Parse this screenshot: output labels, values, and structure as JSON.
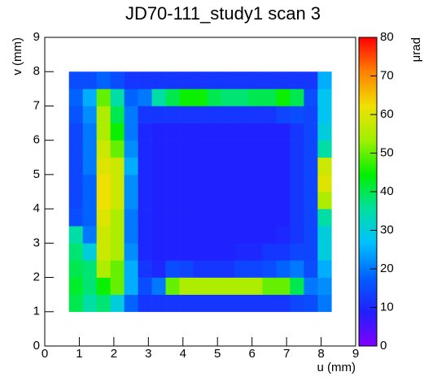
{
  "chart_data": {
    "type": "heatmap",
    "title": "JD70-111_study1 scan 3",
    "xlabel": "u (mm)",
    "ylabel": "v (mm)",
    "zlabel": "μrad",
    "xlim": [
      0,
      9
    ],
    "ylim": [
      0,
      9
    ],
    "zlim": [
      0,
      80
    ],
    "xticks": [
      0,
      1,
      2,
      3,
      4,
      5,
      6,
      7,
      8,
      9
    ],
    "yticks": [
      0,
      1,
      2,
      3,
      4,
      5,
      6,
      7,
      8,
      9
    ],
    "zticks": [
      0,
      10,
      20,
      30,
      40,
      50,
      60,
      70,
      80
    ],
    "colorscale": [
      "#8000ff",
      "#2020ff",
      "#0060ff",
      "#00c0ff",
      "#00e0a0",
      "#00f000",
      "#a0f000",
      "#f0e000",
      "#ff8000",
      "#ff0000"
    ],
    "x_edges": [
      0.7,
      1.1,
      1.5,
      1.9,
      2.3,
      2.7,
      3.1,
      3.5,
      3.9,
      4.3,
      4.7,
      5.1,
      5.5,
      5.9,
      6.3,
      6.7,
      7.1,
      7.5,
      7.9,
      8.3
    ],
    "y_edges": [
      1.0,
      1.5,
      2.0,
      2.5,
      3.0,
      3.5,
      4.0,
      4.5,
      5.0,
      5.5,
      6.0,
      6.5,
      7.0,
      7.5,
      8.0
    ],
    "z": [
      [
        40,
        35,
        38,
        30,
        18,
        12,
        12,
        12,
        12,
        12,
        12,
        12,
        12,
        12,
        12,
        12,
        14,
        15,
        20
      ],
      [
        42,
        38,
        45,
        50,
        25,
        15,
        20,
        50,
        55,
        55,
        55,
        55,
        55,
        55,
        50,
        50,
        40,
        20,
        22
      ],
      [
        40,
        38,
        55,
        50,
        25,
        12,
        10,
        15,
        14,
        12,
        12,
        12,
        14,
        14,
        15,
        18,
        20,
        15,
        25
      ],
      [
        38,
        30,
        58,
        55,
        22,
        10,
        9,
        9,
        9,
        9,
        9,
        9,
        10,
        10,
        12,
        12,
        14,
        14,
        30
      ],
      [
        35,
        20,
        58,
        55,
        20,
        10,
        9,
        9,
        9,
        9,
        9,
        9,
        9,
        9,
        9,
        10,
        12,
        14,
        30
      ],
      [
        15,
        18,
        60,
        55,
        20,
        10,
        9,
        9,
        9,
        9,
        9,
        9,
        9,
        9,
        9,
        9,
        12,
        14,
        35
      ],
      [
        14,
        18,
        62,
        58,
        22,
        10,
        9,
        9,
        9,
        9,
        9,
        9,
        9,
        9,
        9,
        9,
        12,
        14,
        55
      ],
      [
        14,
        18,
        62,
        58,
        22,
        10,
        9,
        9,
        9,
        9,
        9,
        9,
        9,
        9,
        9,
        9,
        12,
        14,
        60
      ],
      [
        14,
        20,
        60,
        58,
        25,
        10,
        9,
        9,
        9,
        9,
        9,
        9,
        9,
        9,
        9,
        9,
        12,
        14,
        58
      ],
      [
        14,
        20,
        58,
        50,
        22,
        10,
        9,
        9,
        9,
        9,
        9,
        9,
        9,
        9,
        9,
        9,
        12,
        14,
        35
      ],
      [
        14,
        20,
        55,
        45,
        20,
        10,
        9,
        9,
        9,
        9,
        9,
        9,
        9,
        9,
        9,
        9,
        12,
        14,
        30
      ],
      [
        16,
        22,
        55,
        40,
        20,
        12,
        12,
        12,
        12,
        12,
        12,
        12,
        12,
        12,
        12,
        14,
        15,
        14,
        28
      ],
      [
        18,
        25,
        50,
        35,
        18,
        20,
        35,
        40,
        45,
        45,
        40,
        38,
        38,
        40,
        40,
        45,
        40,
        15,
        28
      ],
      [
        15,
        15,
        18,
        15,
        12,
        12,
        12,
        12,
        12,
        12,
        12,
        12,
        12,
        12,
        12,
        12,
        12,
        12,
        25
      ]
    ]
  }
}
